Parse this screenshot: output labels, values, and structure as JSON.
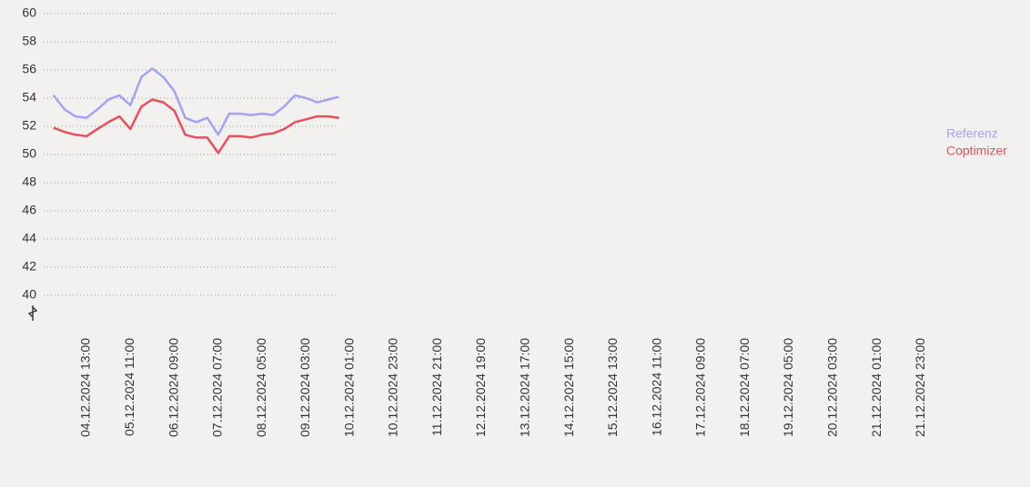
{
  "chart_data": {
    "type": "line",
    "categories": [
      null,
      null,
      null,
      "04.12.2024 13:00",
      null,
      null,
      null,
      "05.12.2024 11:00",
      null,
      null,
      null,
      "06.12.2024 09:00",
      null,
      null,
      null,
      "07.12.2024 07:00",
      null,
      null,
      null,
      "08.12.2024 05:00",
      null,
      null,
      null,
      "09.12.2024 03:00",
      null,
      null,
      null,
      "10.12.2024 01:00",
      null,
      null,
      null,
      "10.12.2024 23:00",
      null,
      null,
      null,
      "11.12.2024 21:00",
      null,
      null,
      null,
      "12.12.2024 19:00",
      null,
      null,
      null,
      "13.12.2024 17:00",
      null,
      null,
      null,
      "14.12.2024 15:00",
      null,
      null,
      null,
      "15.12.2024 13:00",
      null,
      null,
      null,
      "16.12.2024 11:00",
      null,
      null,
      null,
      "17.12.2024 09:00",
      null,
      null,
      null,
      "18.12.2024 07:00",
      null,
      null,
      null,
      "19.12.2024 05:00",
      null,
      null,
      null,
      "20.12.2024 03:00",
      null,
      null,
      null,
      "21.12.2024 01:00",
      null,
      null,
      null,
      "21.12.2024 23:00"
    ],
    "series": [
      {
        "name": "Referenz",
        "color": "#a3a3f2",
        "values": [
          54.2,
          53.2,
          52.7,
          52.6,
          53.2,
          53.9,
          54.2,
          53.5,
          55.5,
          56.1,
          55.5,
          54.5,
          52.6,
          52.3,
          52.6,
          51.4,
          52.9,
          52.9,
          52.8,
          52.9,
          52.8,
          53.4,
          54.2,
          54.0,
          53.7,
          53.9,
          54.1,
          null,
          null,
          null,
          null,
          null,
          null,
          null,
          null,
          null,
          null,
          null,
          null,
          null,
          null,
          null,
          null,
          null,
          null,
          null,
          null,
          null,
          null,
          null,
          null,
          null,
          null,
          null,
          null,
          null,
          null,
          null,
          null,
          null,
          null,
          null,
          null,
          null,
          null,
          null,
          null,
          null,
          null,
          null,
          null,
          null,
          null,
          null,
          null,
          null,
          null,
          null,
          null,
          null
        ]
      },
      {
        "name": "Coptimizer",
        "color": "#e8505c",
        "values": [
          51.9,
          51.6,
          51.4,
          51.3,
          51.8,
          52.3,
          52.7,
          51.8,
          53.4,
          53.9,
          53.7,
          53.1,
          51.4,
          51.2,
          51.2,
          50.1,
          51.3,
          51.3,
          51.2,
          51.4,
          51.5,
          51.8,
          52.3,
          52.5,
          52.7,
          52.7,
          52.6,
          null,
          null,
          null,
          null,
          null,
          null,
          null,
          null,
          null,
          null,
          null,
          null,
          null,
          null,
          null,
          null,
          null,
          null,
          null,
          null,
          null,
          null,
          null,
          null,
          null,
          null,
          null,
          null,
          null,
          null,
          null,
          null,
          null,
          null,
          null,
          null,
          null,
          null,
          null,
          null,
          null,
          null,
          null,
          null,
          null,
          null,
          null,
          null,
          null,
          null,
          null,
          null,
          null
        ]
      }
    ],
    "ylim": [
      40,
      60
    ],
    "yticks": [
      40,
      42,
      44,
      46,
      48,
      50,
      52,
      54,
      56,
      58,
      60
    ],
    "grid": true,
    "legend": "right"
  }
}
